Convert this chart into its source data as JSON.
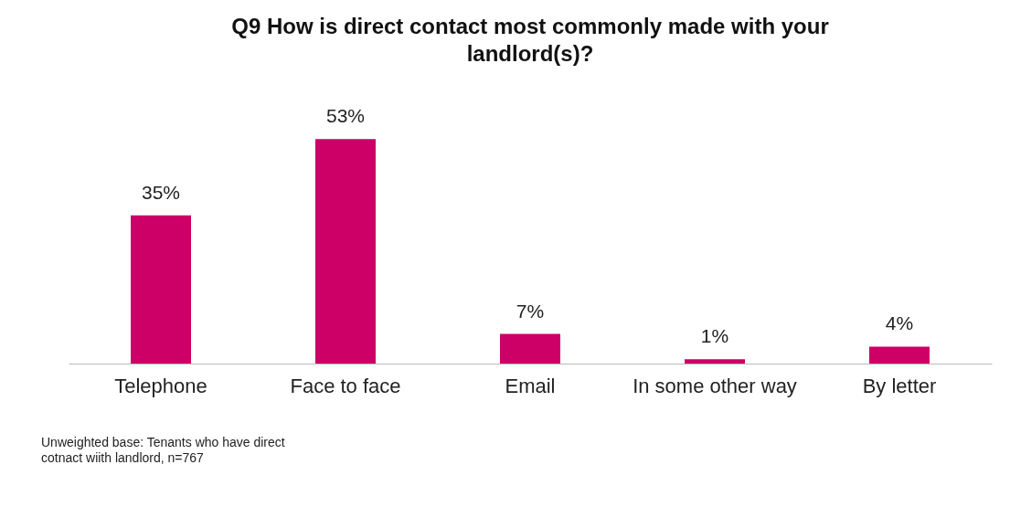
{
  "chart_data": {
    "type": "bar",
    "title": "Q9 How is direct contact most commonly made with your landlord(s)?",
    "categories": [
      "Telephone",
      "Face to face",
      "Email",
      "In some other way",
      "By letter"
    ],
    "values": [
      35,
      53,
      7,
      1,
      4
    ],
    "value_labels": [
      "35%",
      "53%",
      "7%",
      "1%",
      "4%"
    ],
    "color": "#cc0066",
    "annotations": [
      "Unweighted base: Tenants who have direct",
      "cotnact wiith landlord, n=767"
    ]
  }
}
